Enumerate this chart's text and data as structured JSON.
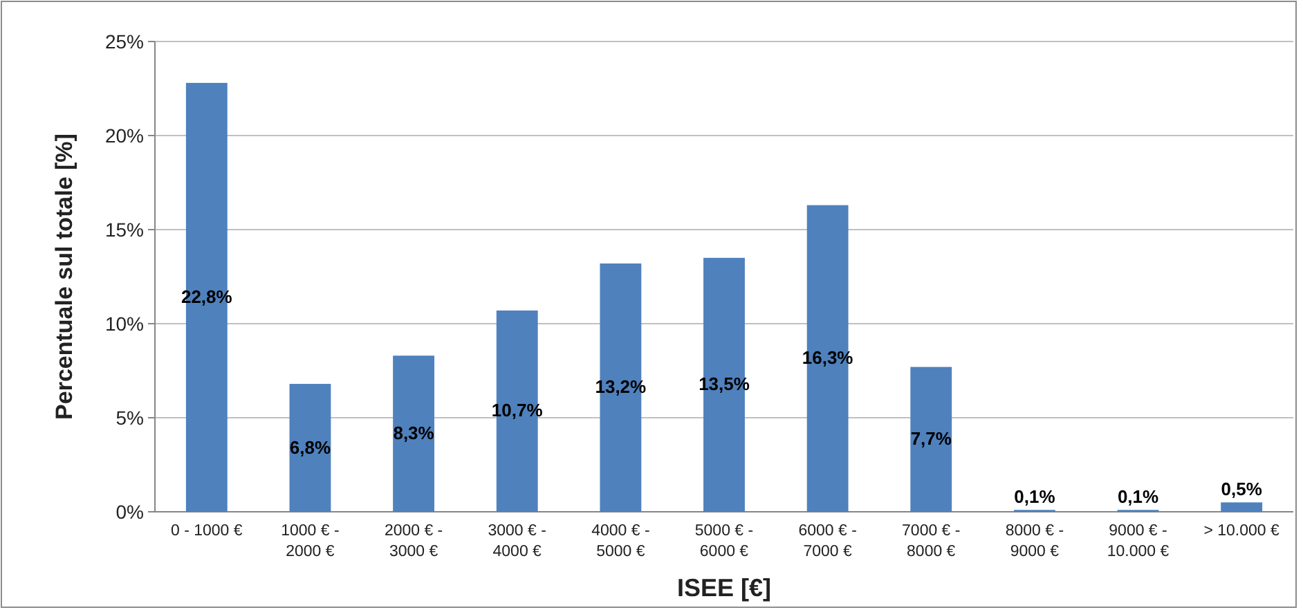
{
  "chart_data": {
    "type": "bar",
    "xlabel": "ISEE [€]",
    "ylabel": "Percentuale sul totale [%]",
    "categories": [
      "0 - 1000 €",
      "1000 € - 2000 €",
      "2000 € - 3000 €",
      "3000 € - 4000 €",
      "4000 € - 5000 €",
      "5000 € - 6000 €",
      "6000 € - 7000 €",
      "7000 € - 8000 €",
      "8000 € - 9000 €",
      "9000 € - 10.000 €",
      "> 10.000 €"
    ],
    "values": [
      22.8,
      6.8,
      8.3,
      10.7,
      13.2,
      13.5,
      16.3,
      7.7,
      0.1,
      0.1,
      0.5
    ],
    "value_labels": [
      "22,8%",
      "6,8%",
      "8,3%",
      "10,7%",
      "13,2%",
      "13,5%",
      "16,3%",
      "7,7%",
      "0,1%",
      "0,1%",
      "0,5%"
    ],
    "color": "#4f81bd",
    "ylim": [
      0,
      25
    ],
    "yticks": [
      {
        "value": 0,
        "label": "0%"
      },
      {
        "value": 5,
        "label": "5%"
      },
      {
        "value": 10,
        "label": "10%"
      },
      {
        "value": 15,
        "label": "15%"
      },
      {
        "value": 20,
        "label": "20%"
      },
      {
        "value": 25,
        "label": "25%"
      }
    ],
    "grid": "y"
  }
}
